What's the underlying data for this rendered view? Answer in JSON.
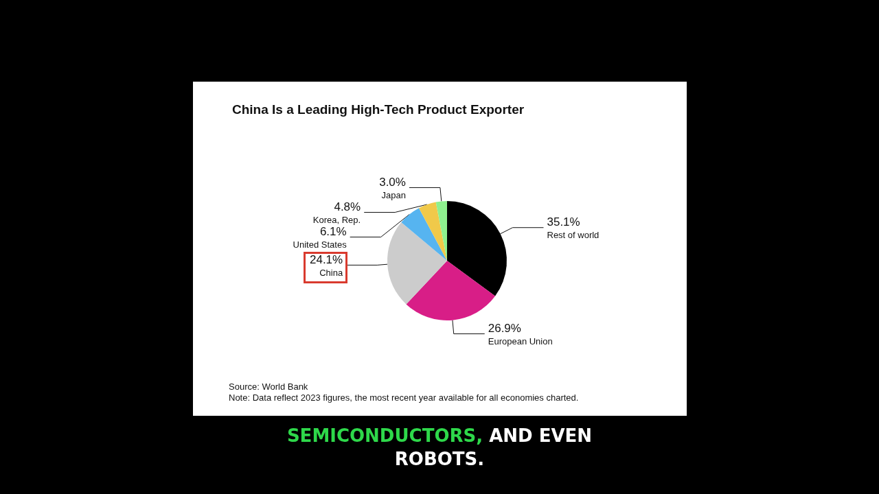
{
  "chart_data": {
    "type": "pie",
    "title": "China Is a Leading High-Tech Product Exporter",
    "categories": [
      "Rest of world",
      "European Union",
      "China",
      "United States",
      "Korea, Rep.",
      "Japan"
    ],
    "values": [
      35.1,
      26.9,
      24.1,
      6.1,
      4.8,
      3.0
    ],
    "value_labels": [
      "35.1%",
      "26.9%",
      "24.1%",
      "6.1%",
      "4.8%",
      "3.0%"
    ],
    "colors": [
      "#000000",
      "#d81e87",
      "#cccccc",
      "#56b4f0",
      "#f0c94a",
      "#8ef08e"
    ],
    "legend": false,
    "annotations": [
      "Source: World Bank",
      "Note: Data reflect 2023 figures, the most recent year available for all economies charted.",
      "SEMICONDUCTORS, AND EVEN ROBOTS."
    ]
  }
}
